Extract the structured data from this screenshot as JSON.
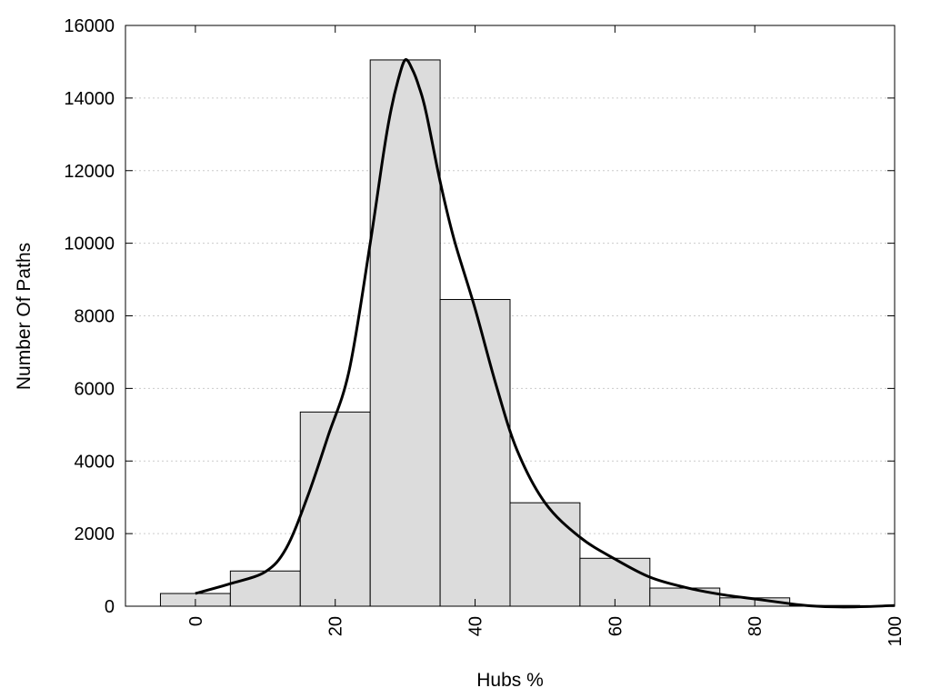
{
  "chart_data": {
    "type": "bar",
    "title": "",
    "xlabel": "Hubs %",
    "ylabel": "Number Of Paths",
    "xlim": [
      -10,
      100
    ],
    "ylim": [
      0,
      16000
    ],
    "grid": true,
    "bin_width": 10,
    "x_ticks": [
      0,
      20,
      40,
      60,
      80,
      100
    ],
    "x_tick_labels": [
      "0",
      "20",
      "40",
      "60",
      "80",
      "100"
    ],
    "y_ticks": [
      0,
      2000,
      4000,
      6000,
      8000,
      10000,
      12000,
      14000,
      16000
    ],
    "y_tick_labels": [
      "0",
      "2000",
      "4000",
      "6000",
      "8000",
      "10000",
      "12000",
      "14000",
      "16000"
    ],
    "bars": {
      "centers": [
        0,
        10,
        20,
        30,
        40,
        50,
        60,
        70,
        80,
        90
      ],
      "values": [
        350,
        970,
        5350,
        15050,
        8450,
        2850,
        1320,
        500,
        230,
        20
      ]
    },
    "curve": {
      "x": [
        0,
        5,
        10,
        13,
        16,
        19,
        22,
        25,
        27,
        28,
        29,
        30,
        31,
        32,
        33,
        35,
        37,
        40,
        43,
        46,
        50,
        55,
        60,
        65,
        70,
        75,
        80,
        85,
        88,
        92,
        96,
        100
      ],
      "y": [
        350,
        620,
        950,
        1600,
        3000,
        4700,
        6500,
        10000,
        12600,
        13700,
        14500,
        15050,
        14800,
        14300,
        13600,
        11700,
        10100,
        8200,
        6100,
        4300,
        2850,
        1900,
        1300,
        800,
        520,
        330,
        200,
        70,
        10,
        -20,
        -10,
        20
      ]
    },
    "colors": {
      "bar_fill": "#dcdcdc",
      "bar_stroke": "#000000",
      "curve": "#000000",
      "grid": "#cccccc"
    }
  }
}
